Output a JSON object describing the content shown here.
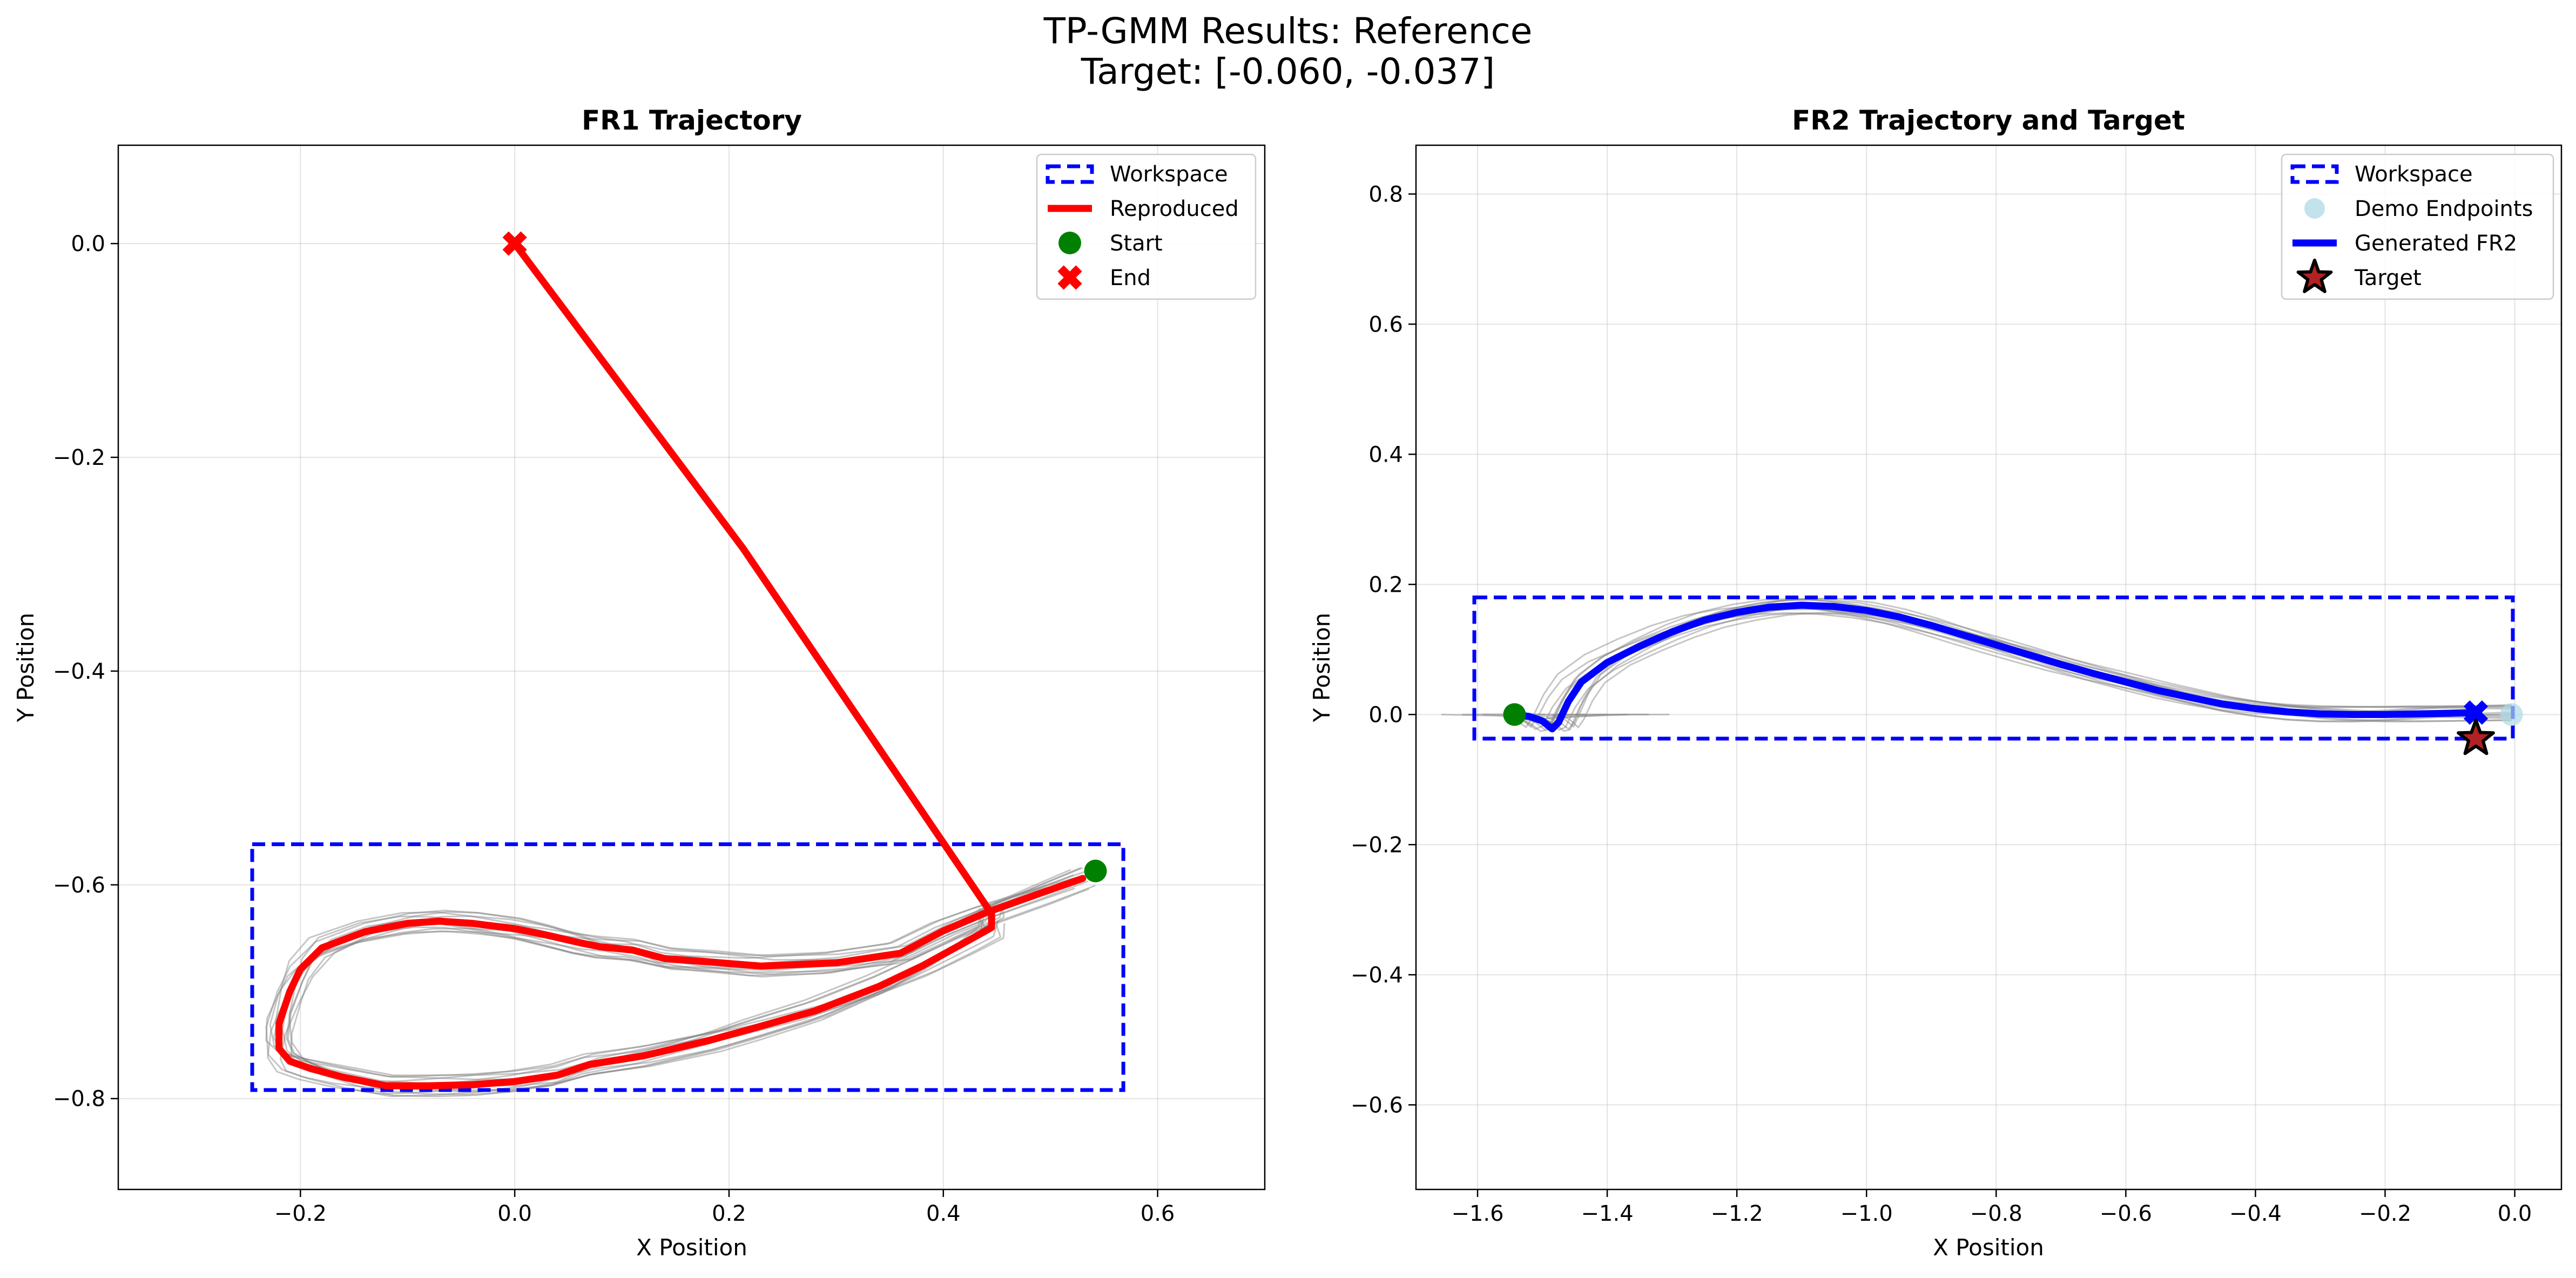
{
  "figure": {
    "title_line1": "TP-GMM Results: Reference",
    "title_line2": "Target: [-0.060, -0.037]"
  },
  "colors": {
    "workspace": "#0000ff",
    "reproduced": "#ff0000",
    "generated": "#0000ff",
    "start": "#008000",
    "end_left": "#ff0000",
    "end_right": "#0000ff",
    "demo": "#808080",
    "demo_endpoints": "#add8e6",
    "target": "#b22222"
  },
  "chart_data": [
    {
      "type": "line",
      "title": "FR1 Trajectory",
      "xlabel": "X Position",
      "ylabel": "Y Position",
      "xlim": [
        -0.37,
        0.7
      ],
      "ylim": [
        -0.885,
        0.092
      ],
      "xticks": [
        -0.2,
        0.0,
        0.2,
        0.4,
        0.6
      ],
      "xtick_labels": [
        "−0.2",
        "0.0",
        "0.2",
        "0.4",
        "0.6"
      ],
      "yticks": [
        0.0,
        -0.2,
        -0.4,
        -0.6,
        -0.8
      ],
      "ytick_labels": [
        "0.0",
        "−0.2",
        "−0.4",
        "−0.6",
        "−0.8"
      ],
      "grid": true,
      "legend_position": "top-right",
      "legend": [
        "Workspace",
        "Reproduced",
        "Start",
        "End"
      ],
      "workspace_rect": {
        "x0": -0.245,
        "x1": 0.568,
        "y0": -0.792,
        "y1": -0.562
      },
      "start": {
        "x": 0.542,
        "y": -0.587
      },
      "end": {
        "x": 0.0,
        "y": 0.0
      },
      "reproduced": {
        "x": [
          0.53,
          0.49,
          0.44,
          0.4,
          0.36,
          0.3,
          0.23,
          0.18,
          0.14,
          0.11,
          0.08,
          0.06,
          0.03,
          0.0,
          -0.04,
          -0.07,
          -0.1,
          -0.14,
          -0.18,
          -0.2,
          -0.21,
          -0.22,
          -0.22,
          -0.21,
          -0.19,
          -0.16,
          -0.12,
          -0.08,
          -0.04,
          0.0,
          0.04,
          0.07,
          0.12,
          0.18,
          0.22,
          0.28,
          0.34,
          0.38,
          0.42,
          0.445,
          0.445,
          0.213,
          0.0
        ],
        "y": [
          -0.594,
          -0.608,
          -0.626,
          -0.643,
          -0.664,
          -0.673,
          -0.676,
          -0.672,
          -0.669,
          -0.661,
          -0.658,
          -0.654,
          -0.647,
          -0.641,
          -0.636,
          -0.634,
          -0.636,
          -0.644,
          -0.659,
          -0.679,
          -0.7,
          -0.73,
          -0.753,
          -0.765,
          -0.772,
          -0.78,
          -0.788,
          -0.788,
          -0.787,
          -0.784,
          -0.778,
          -0.768,
          -0.76,
          -0.746,
          -0.735,
          -0.718,
          -0.695,
          -0.676,
          -0.654,
          -0.64,
          -0.627,
          -0.285,
          0.0
        ]
      }
    },
    {
      "type": "line",
      "title": "FR2 Trajectory and Target",
      "xlabel": "X Position",
      "ylabel": "Y Position",
      "xlim": [
        -1.695,
        0.072
      ],
      "ylim": [
        -0.73,
        0.875
      ],
      "xticks": [
        -1.6,
        -1.4,
        -1.2,
        -1.0,
        -0.8,
        -0.6,
        -0.4,
        -0.2,
        0.0
      ],
      "xtick_labels": [
        "−1.6",
        "−1.4",
        "−1.2",
        "−1.0",
        "−0.8",
        "−0.6",
        "−0.4",
        "−0.2",
        "0.0"
      ],
      "yticks": [
        0.8,
        0.6,
        0.4,
        0.2,
        0.0,
        -0.2,
        -0.4,
        -0.6
      ],
      "ytick_labels": [
        "0.8",
        "0.6",
        "0.4",
        "0.2",
        "0.0",
        "−0.2",
        "−0.4",
        "−0.6"
      ],
      "grid": true,
      "legend_position": "top-right",
      "legend": [
        "Workspace",
        "Demo Endpoints",
        "Generated FR2",
        "Target"
      ],
      "workspace_rect": {
        "x0": -1.605,
        "x1": -0.003,
        "y0": -0.037,
        "y1": 0.18
      },
      "start": {
        "x": -1.543,
        "y": 0.0
      },
      "end": {
        "x": -0.06,
        "y": 0.003
      },
      "target": {
        "x": -0.06,
        "y": -0.037
      },
      "demo_endpoint": {
        "x": -0.005,
        "y": 0.0
      },
      "generated": {
        "x": [
          -1.543,
          -1.52,
          -1.5,
          -1.485,
          -1.475,
          -1.46,
          -1.44,
          -1.4,
          -1.35,
          -1.3,
          -1.25,
          -1.2,
          -1.15,
          -1.1,
          -1.05,
          -1.0,
          -0.95,
          -0.9,
          -0.85,
          -0.8,
          -0.75,
          -0.7,
          -0.65,
          -0.6,
          -0.55,
          -0.5,
          -0.45,
          -0.4,
          -0.35,
          -0.3,
          -0.25,
          -0.2,
          -0.15,
          -0.1,
          -0.06
        ],
        "y": [
          0.0,
          -0.003,
          -0.01,
          -0.022,
          -0.012,
          0.02,
          0.05,
          0.08,
          0.105,
          0.127,
          0.145,
          0.157,
          0.165,
          0.168,
          0.166,
          0.16,
          0.15,
          0.137,
          0.122,
          0.107,
          0.092,
          0.077,
          0.063,
          0.05,
          0.037,
          0.026,
          0.016,
          0.009,
          0.004,
          0.001,
          0.0,
          0.0,
          0.001,
          0.002,
          0.003
        ]
      }
    }
  ]
}
